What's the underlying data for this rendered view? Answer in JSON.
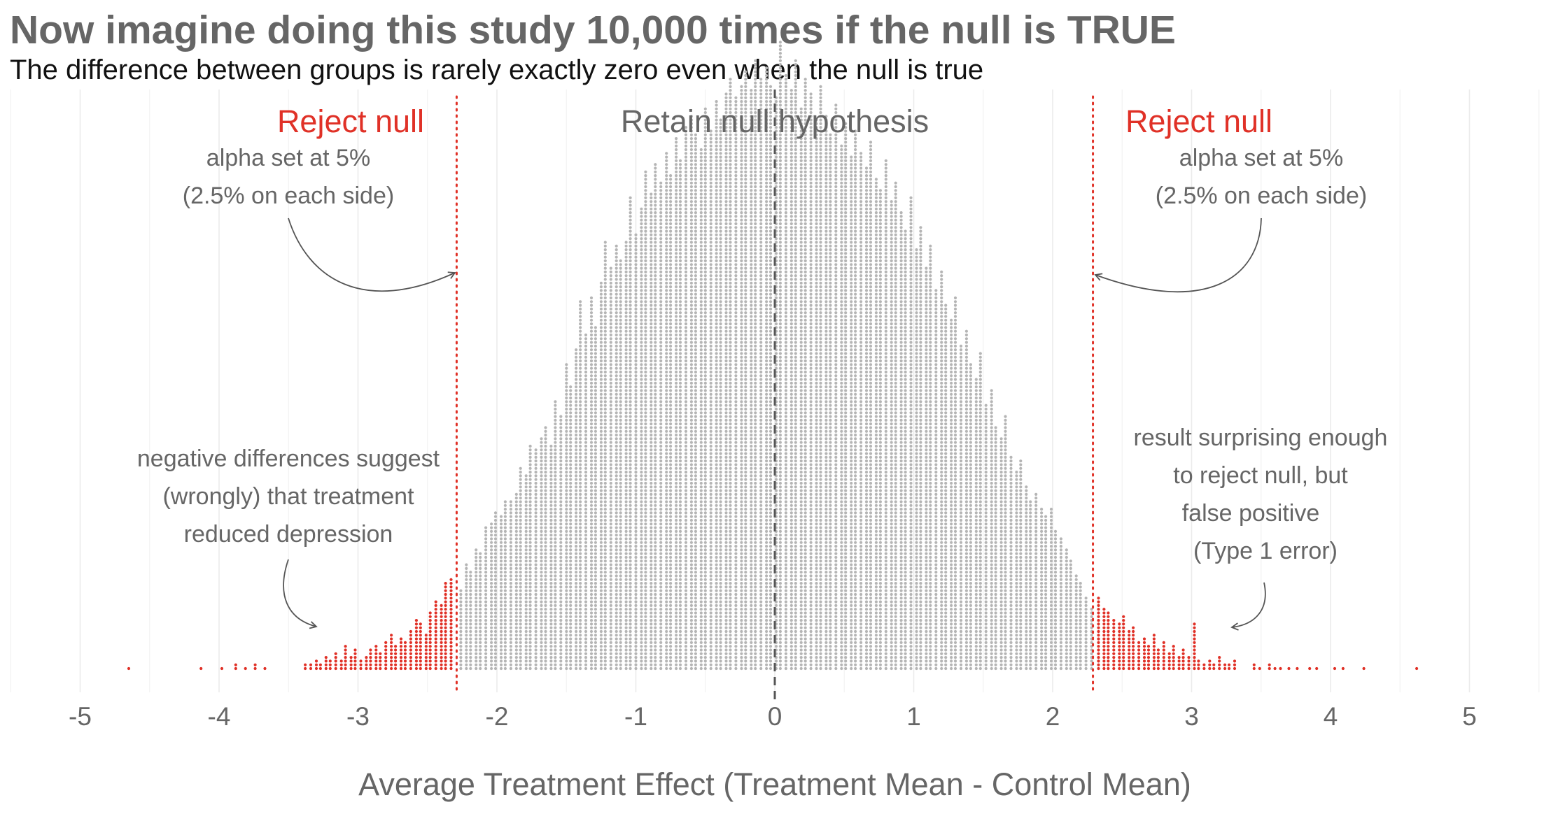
{
  "title": "Now imagine doing this study 10,000 times if the null is TRUE",
  "subtitle": "The difference between groups is rarely exactly zero even when the null is true",
  "chart_data": {
    "type": "dotplot",
    "n_simulations": 10000,
    "xlabel": "Average Treatment Effect (Treatment Mean - Control Mean)",
    "ylabel": "",
    "xlim": [
      -5.5,
      5.5
    ],
    "x_ticks": [
      -5,
      -4,
      -3,
      -2,
      -1,
      0,
      1,
      2,
      3,
      4,
      5
    ],
    "x_tick_labels": [
      "-5",
      "-4",
      "-3",
      "-2",
      "-1",
      "0",
      "1",
      "2",
      "3",
      "4",
      "5"
    ],
    "grid": "vertical lines at whole and half units",
    "null_line_x": 0,
    "critical_values": [
      -2.29,
      2.29
    ],
    "colors": {
      "retain": "#b5b5b5",
      "reject": "#e03127",
      "critical_line": "#e03127",
      "null_line": "#555555"
    },
    "series": [
      {
        "name": "reject-left",
        "x": [
          -4.65,
          -4.13,
          -3.98,
          -3.88,
          -3.81,
          -3.74,
          -3.67,
          -3.38,
          -3.34,
          -3.3,
          -3.27,
          -3.23,
          -3.2,
          -3.16,
          -3.12,
          -3.09,
          -3.05,
          -3.02,
          -2.98,
          -2.94,
          -2.91,
          -2.87,
          -2.84,
          -2.8,
          -2.76,
          -2.73,
          -2.69,
          -2.66,
          -2.62,
          -2.58,
          -2.55,
          -2.51,
          -2.48,
          -2.44,
          -2.4,
          -2.37,
          -2.33
        ],
        "count": [
          1,
          1,
          1,
          2,
          1,
          2,
          1,
          2,
          2,
          3,
          2,
          4,
          3,
          5,
          3,
          7,
          4,
          6,
          3,
          4,
          6,
          7,
          5,
          8,
          10,
          7,
          9,
          8,
          11,
          14,
          13,
          10,
          16,
          19,
          18,
          24,
          25
        ]
      },
      {
        "name": "reject-right",
        "x": [
          2.33,
          2.37,
          2.4,
          2.44,
          2.48,
          2.51,
          2.55,
          2.58,
          2.62,
          2.66,
          2.69,
          2.73,
          2.76,
          2.8,
          2.84,
          2.87,
          2.91,
          2.94,
          2.98,
          3.02,
          3.05,
          3.09,
          3.13,
          3.16,
          3.2,
          3.24,
          3.27,
          3.31,
          3.45,
          3.49,
          3.56,
          3.6,
          3.64,
          3.7,
          3.76,
          3.85,
          3.9,
          4.03,
          4.09,
          4.24,
          4.62
        ],
        "count": [
          20,
          17,
          16,
          14,
          13,
          15,
          11,
          12,
          8,
          9,
          7,
          10,
          6,
          8,
          5,
          7,
          4,
          6,
          4,
          13,
          3,
          2,
          3,
          2,
          4,
          2,
          2,
          3,
          2,
          1,
          2,
          1,
          1,
          1,
          1,
          1,
          1,
          1,
          1,
          1,
          1
        ]
      },
      {
        "name": "retain",
        "x": [
          -2.26,
          -2.22,
          -2.19,
          -2.15,
          -2.12,
          -2.08,
          -2.04,
          -2.01,
          -1.97,
          -1.94,
          -1.9,
          -1.86,
          -1.83,
          -1.79,
          -1.76,
          -1.72,
          -1.68,
          -1.65,
          -1.61,
          -1.58,
          -1.54,
          -1.5,
          -1.47,
          -1.43,
          -1.4,
          -1.36,
          -1.32,
          -1.29,
          -1.25,
          -1.22,
          -1.18,
          -1.14,
          -1.11,
          -1.07,
          -1.04,
          -1.0,
          -0.96,
          -0.93,
          -0.89,
          -0.86,
          -0.82,
          -0.78,
          -0.75,
          -0.71,
          -0.68,
          -0.64,
          -0.6,
          -0.57,
          -0.53,
          -0.5,
          -0.46,
          -0.42,
          -0.39,
          -0.35,
          -0.32,
          -0.28,
          -0.24,
          -0.21,
          -0.17,
          -0.14,
          -0.1,
          -0.06,
          -0.03,
          0.01,
          0.04,
          0.08,
          0.12,
          0.15,
          0.19,
          0.22,
          0.26,
          0.3,
          0.33,
          0.37,
          0.4,
          0.44,
          0.48,
          0.51,
          0.55,
          0.58,
          0.62,
          0.66,
          0.69,
          0.73,
          0.76,
          0.8,
          0.84,
          0.87,
          0.91,
          0.94,
          0.98,
          1.02,
          1.05,
          1.09,
          1.12,
          1.16,
          1.2,
          1.23,
          1.27,
          1.3,
          1.34,
          1.38,
          1.41,
          1.45,
          1.48,
          1.52,
          1.56,
          1.59,
          1.63,
          1.66,
          1.7,
          1.74,
          1.77,
          1.81,
          1.84,
          1.88,
          1.92,
          1.95,
          1.99,
          2.02,
          2.06,
          2.1,
          2.13,
          2.17,
          2.2,
          2.24,
          2.28
        ],
        "count": [
          22,
          29,
          27,
          33,
          32,
          39,
          40,
          43,
          42,
          46,
          46,
          48,
          55,
          53,
          61,
          60,
          63,
          66,
          61,
          73,
          69,
          83,
          77,
          87,
          100,
          91,
          101,
          93,
          105,
          116,
          109,
          115,
          111,
          116,
          128,
          118,
          125,
          135,
          129,
          137,
          132,
          140,
          134,
          144,
          138,
          147,
          150,
          145,
          141,
          152,
          146,
          154,
          149,
          156,
          160,
          155,
          158,
          162,
          157,
          165,
          160,
          163,
          158,
          155,
          170,
          161,
          157,
          165,
          152,
          160,
          156,
          149,
          158,
          150,
          145,
          153,
          142,
          148,
          139,
          146,
          140,
          136,
          143,
          133,
          130,
          138,
          127,
          132,
          124,
          119,
          128,
          114,
          120,
          109,
          115,
          103,
          108,
          99,
          95,
          101,
          88,
          92,
          83,
          79,
          86,
          72,
          76,
          66,
          63,
          69,
          58,
          54,
          57,
          50,
          46,
          48,
          44,
          42,
          44,
          38,
          36,
          33,
          30,
          26,
          24,
          20,
          17
        ]
      }
    ],
    "annotations": {
      "reject_left": "Reject null",
      "reject_right": "Reject null",
      "retain": "Retain null hypothesis",
      "alpha_left_1": "alpha set at 5%",
      "alpha_left_2": "(2.5% on each side)",
      "alpha_right_1": "alpha set at 5%",
      "alpha_right_2": "(2.5% on each side)",
      "neg_1": "negative differences suggest",
      "neg_2": "(wrongly) that treatment",
      "neg_3": "reduced depression",
      "fp_1": "result surprising enough",
      "fp_2": "to reject null, but",
      "fp_3": "false positive",
      "fp_4": "(Type 1 error)"
    }
  }
}
